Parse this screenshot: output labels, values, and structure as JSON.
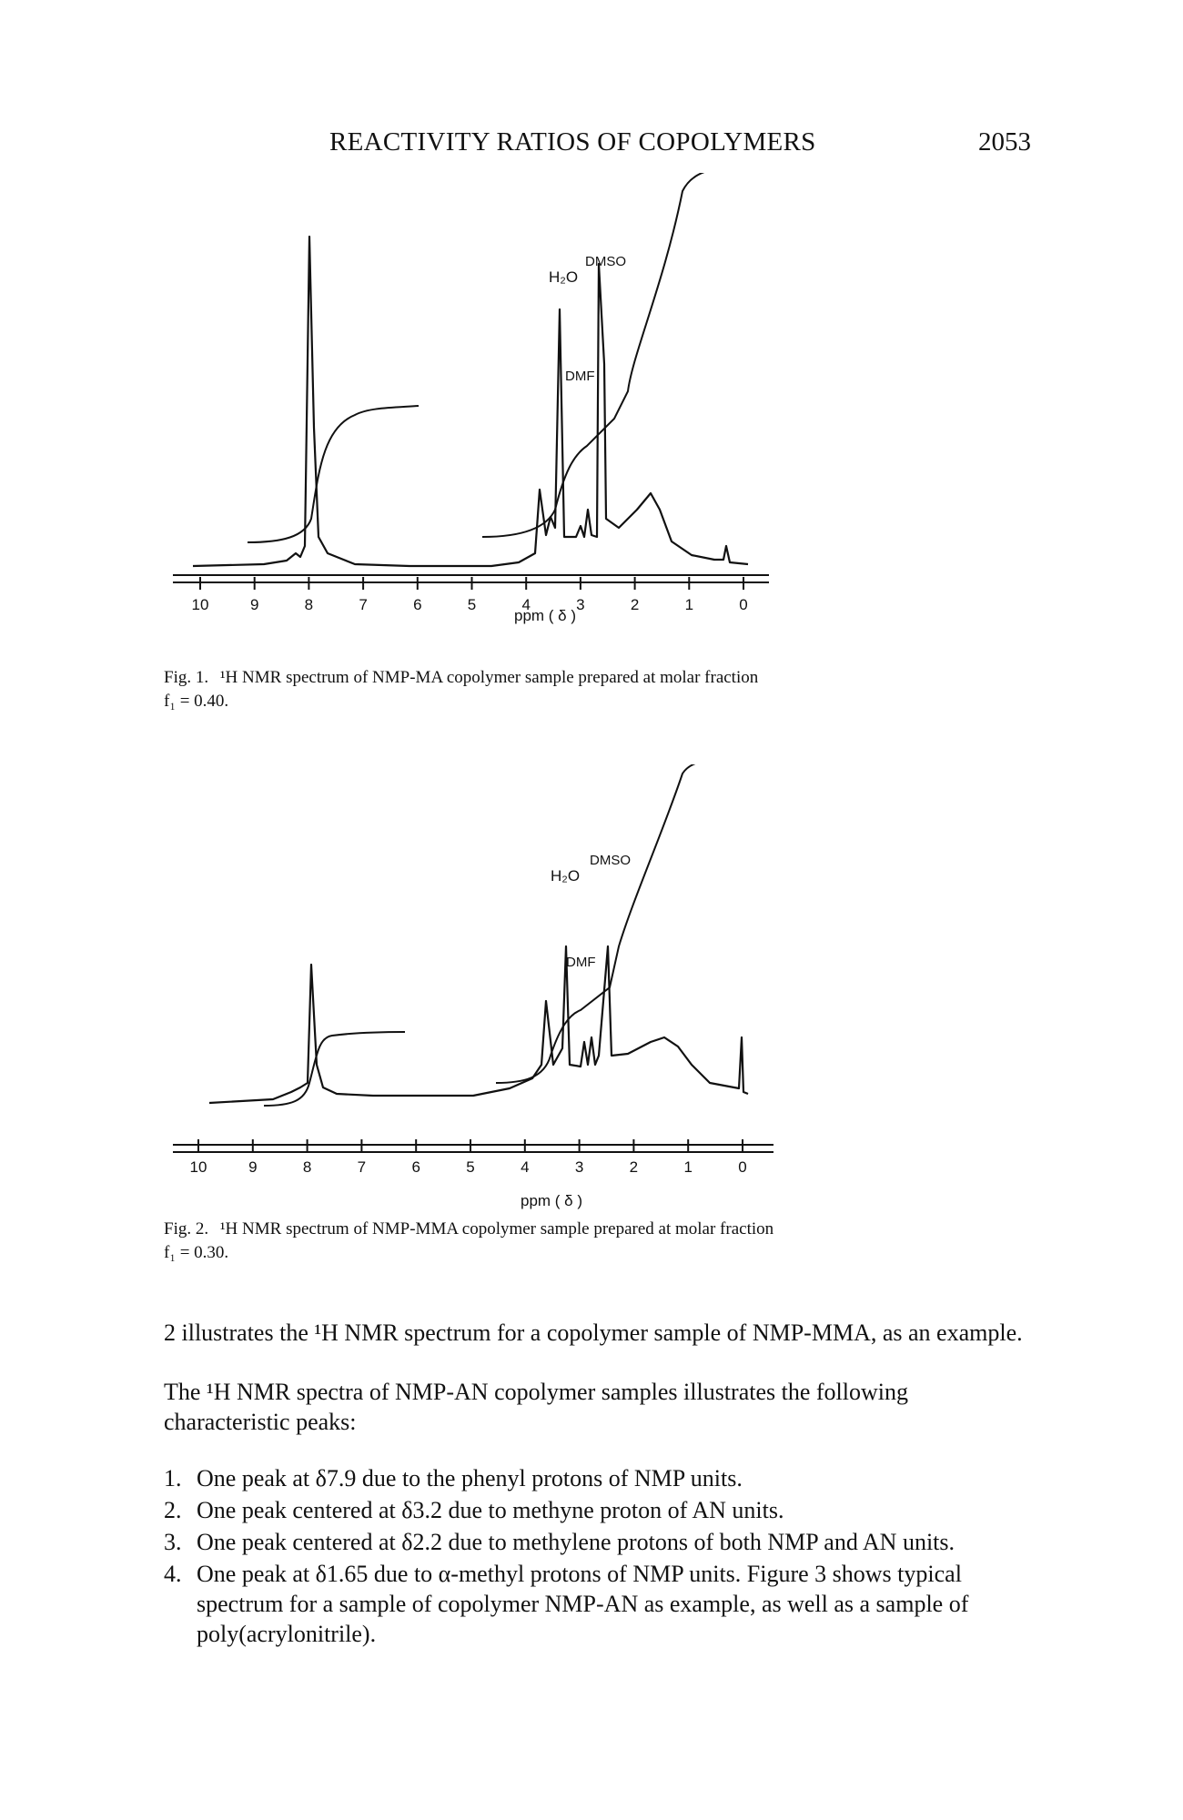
{
  "header": {
    "title": "REACTIVITY RATIOS OF COPOLYMERS",
    "page_number": "2053"
  },
  "figures": [
    {
      "axis_ticks": [
        "10",
        "9",
        "8",
        "7",
        "6",
        "5",
        "4",
        "3",
        "2",
        "1",
        "0"
      ],
      "xlabel": "ppm ( δ )",
      "peak_labels": {
        "h2o": "H₂O",
        "dmso": "DMSO",
        "dmf": "DMF"
      },
      "caption_num": "Fig. 1.",
      "caption_text": "¹H NMR spectrum of NMP-MA copolymer sample prepared at molar fraction",
      "caption_line2": "f₁ = 0.40."
    },
    {
      "axis_ticks": [
        "10",
        "9",
        "8",
        "7",
        "6",
        "5",
        "4",
        "3",
        "2",
        "1",
        "0"
      ],
      "xlabel": "ppm ( δ )",
      "peak_labels": {
        "h2o": "H₂O",
        "dmso": "DMSO",
        "dmf": "DMF"
      },
      "caption_num": "Fig. 2.",
      "caption_text": "¹H NMR spectrum of NMP-MMA copolymer sample prepared at molar fraction",
      "caption_line2": "f₁ = 0.30."
    }
  ],
  "body": {
    "para1": "2 illustrates the ¹H NMR spectrum for a copolymer sample of NMP-MMA, as an example.",
    "para2": "The ¹H NMR spectra of NMP-AN copolymer samples illustrates the following characteristic peaks:",
    "list": [
      {
        "num": "1.",
        "text": "One peak at δ7.9 due to the phenyl protons of NMP units."
      },
      {
        "num": "2.",
        "text": "One peak centered at δ3.2 due to methyne proton of AN units."
      },
      {
        "num": "3.",
        "text": "One peak centered at δ2.2 due to methylene protons of both NMP and AN units."
      },
      {
        "num": "4.",
        "text": "One peak at δ1.65 due to α-methyl protons of NMP units. Figure 3 shows typical spectrum for a sample of copolymer NMP-AN as example, as well as a sample of poly(acrylonitrile)."
      }
    ]
  }
}
